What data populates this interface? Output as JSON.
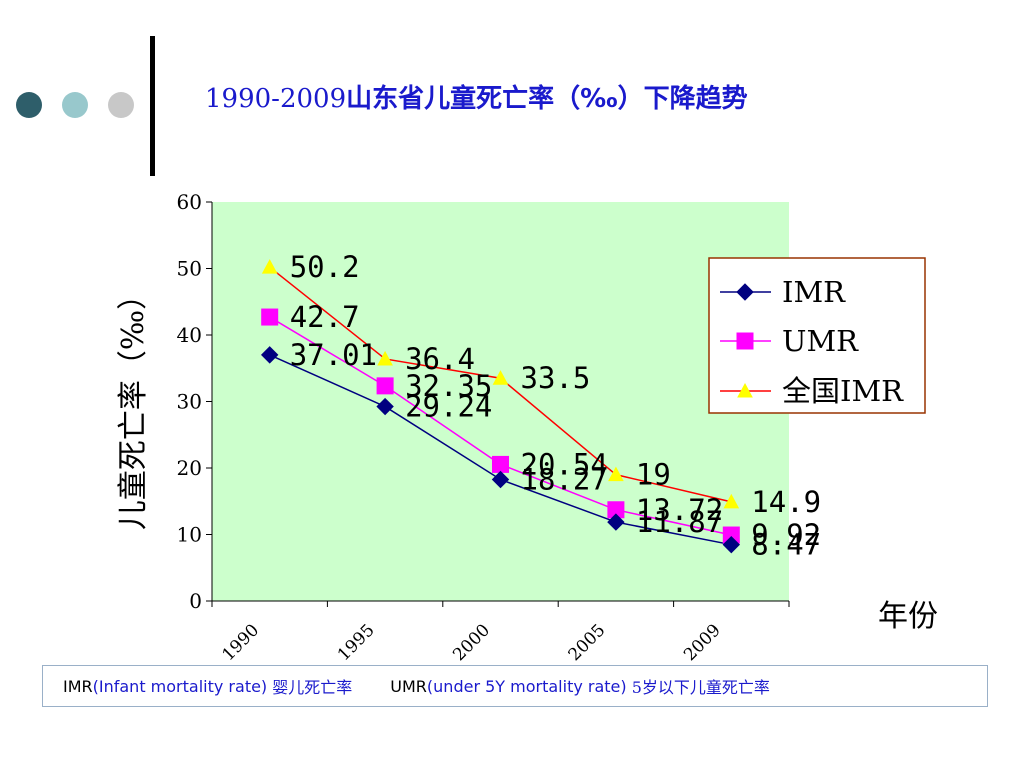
{
  "slide": {
    "title_prefix": "1990-2009",
    "title_suffix": "山东省儿童死亡率（‰）下降趋势",
    "bullet_colors": [
      "#2e5e6a",
      "#98c8cc",
      "#c8c8c8"
    ]
  },
  "footnote": {
    "imr_abbr": "IMR",
    "imr_en": "(Infant mortality rate)",
    "imr_zh": "婴儿死亡率",
    "umr_abbr": "UMR",
    "umr_en": "(under 5Y mortality rate)",
    "umr_zh": "5岁以下儿童死亡率"
  },
  "chart_data": {
    "type": "line",
    "title": "",
    "xlabel": "年份",
    "ylabel": "儿童死亡率（‰）",
    "categories": [
      "1990",
      "1995",
      "2000",
      "2005",
      "2009"
    ],
    "ylim": [
      0,
      60
    ],
    "yticks": [
      0,
      10,
      20,
      30,
      40,
      50,
      60
    ],
    "plot_background": "#ccffcc",
    "grid": false,
    "legend_position": "right",
    "series": [
      {
        "name": "IMR",
        "values": [
          37.01,
          29.24,
          18.27,
          11.87,
          8.47
        ],
        "labels": [
          "37.01",
          "29.24",
          "18.27",
          "11.87",
          "8.47"
        ],
        "color": "#000080",
        "marker": "diamond"
      },
      {
        "name": "UMR",
        "values": [
          42.7,
          32.35,
          20.54,
          13.72,
          9.92
        ],
        "labels": [
          "42.7",
          "32.35",
          "20.54",
          "13.72",
          "9.92"
        ],
        "color": "#ff00ff",
        "marker": "square"
      },
      {
        "name": "全国IMR",
        "values": [
          50.2,
          36.4,
          33.5,
          19,
          14.9
        ],
        "labels": [
          "50.2",
          "36.4",
          "33.5",
          "19",
          "14.9"
        ],
        "color": "#ff0000",
        "marker": "triangle",
        "marker_color": "#ffff00"
      }
    ]
  }
}
